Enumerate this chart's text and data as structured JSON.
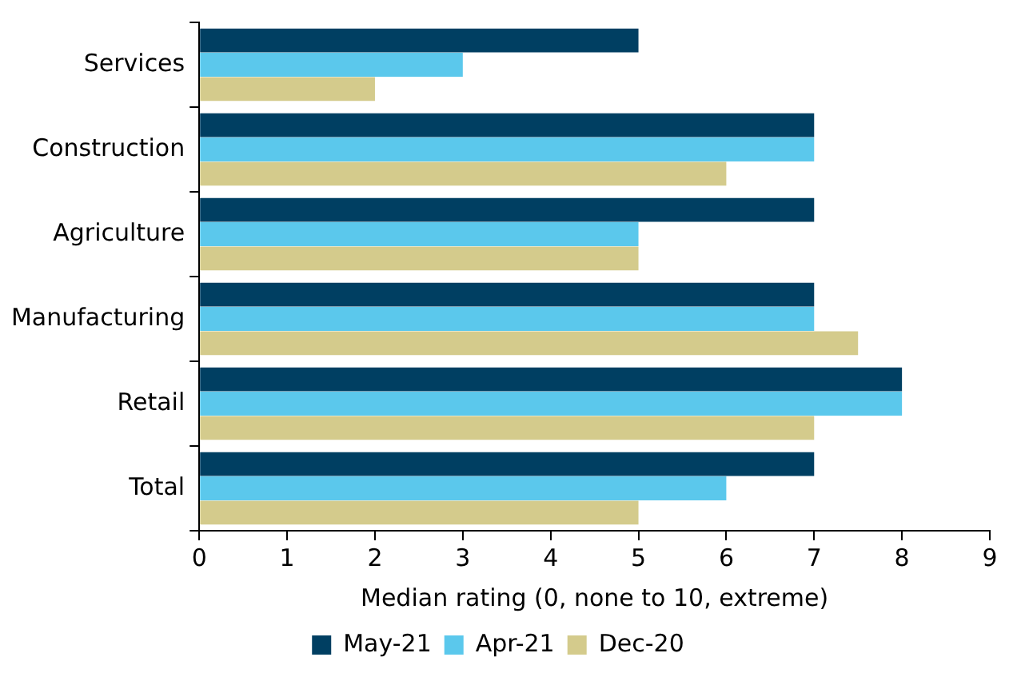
{
  "chart_data": {
    "type": "bar",
    "orientation": "horizontal",
    "xlabel": "Median rating (0, none to 10, extreme)",
    "categories": [
      "Services",
      "Construction",
      "Agriculture",
      "Manufacturing",
      "Retail",
      "Total"
    ],
    "series": [
      {
        "name": "May-21",
        "color": "#003f62",
        "values": [
          5,
          7,
          7,
          7,
          8,
          7
        ]
      },
      {
        "name": "Apr-21",
        "color": "#5bc8ec",
        "values": [
          3,
          7,
          5,
          7,
          8,
          6
        ]
      },
      {
        "name": "Dec-20",
        "color": "#d4cb8c",
        "values": [
          2,
          6,
          5,
          7.5,
          7,
          5
        ]
      }
    ],
    "xlim": [
      0,
      9
    ],
    "xticks": [
      0,
      1,
      2,
      3,
      4,
      5,
      6,
      7,
      8,
      9
    ],
    "legend": "bottom"
  }
}
